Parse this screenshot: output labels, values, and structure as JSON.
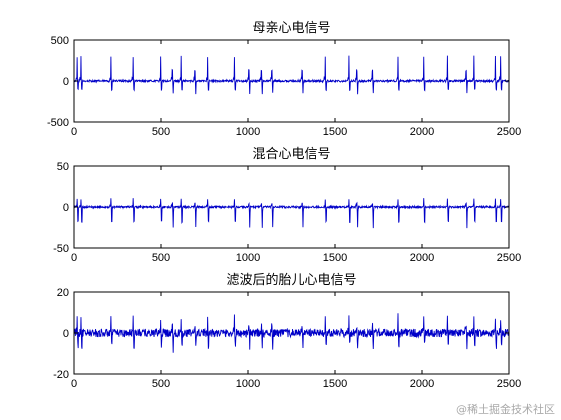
{
  "chart_data": [
    {
      "type": "line",
      "title": "母亲心电信号",
      "xlim": [
        0,
        2500
      ],
      "ylim": [
        -500,
        500
      ],
      "xticks": [
        0,
        500,
        1000,
        1500,
        2000,
        2500
      ],
      "yticks": [
        500,
        0,
        -500
      ],
      "line_color": "#0000c8",
      "beats": [
        18,
        40,
        212,
        340,
        498,
        565,
        616,
        695,
        768,
        922,
        1005,
        1077,
        1137,
        1311,
        1444,
        1580,
        1625,
        1715,
        1862,
        2010,
        2146,
        2253,
        2298,
        2422,
        2452
      ],
      "peak_amplitude": 300,
      "trough_amplitude": -150,
      "grid": false
    },
    {
      "type": "line",
      "title": "混合心电信号",
      "xlim": [
        0,
        2500
      ],
      "ylim": [
        -50,
        50
      ],
      "xticks": [
        0,
        500,
        1000,
        1500,
        2000,
        2500
      ],
      "yticks": [
        50,
        0,
        -50
      ],
      "line_color": "#0000c8",
      "beats": [
        18,
        40,
        212,
        340,
        498,
        565,
        616,
        695,
        768,
        922,
        1005,
        1077,
        1137,
        1311,
        1444,
        1580,
        1625,
        1715,
        1862,
        2010,
        2146,
        2253,
        2298,
        2422,
        2452
      ],
      "peak_amplitude": 10,
      "trough_amplitude": -25,
      "grid": false
    },
    {
      "type": "line",
      "title": "滤波后的胎儿心电信号",
      "xlim": [
        0,
        2500
      ],
      "ylim": [
        -20,
        20
      ],
      "xticks": [
        0,
        500,
        1000,
        1500,
        2000,
        2500
      ],
      "yticks": [
        20,
        0,
        -20
      ],
      "line_color": "#0000c8",
      "beats": [
        18,
        40,
        212,
        340,
        498,
        565,
        616,
        695,
        768,
        922,
        1005,
        1077,
        1137,
        1311,
        1444,
        1580,
        1625,
        1715,
        1862,
        2010,
        2146,
        2253,
        2298,
        2422,
        2452
      ],
      "peak_amplitude": 8,
      "trough_amplitude": -8,
      "grid": false
    }
  ],
  "watermark": "@稀土掘金技术社区"
}
